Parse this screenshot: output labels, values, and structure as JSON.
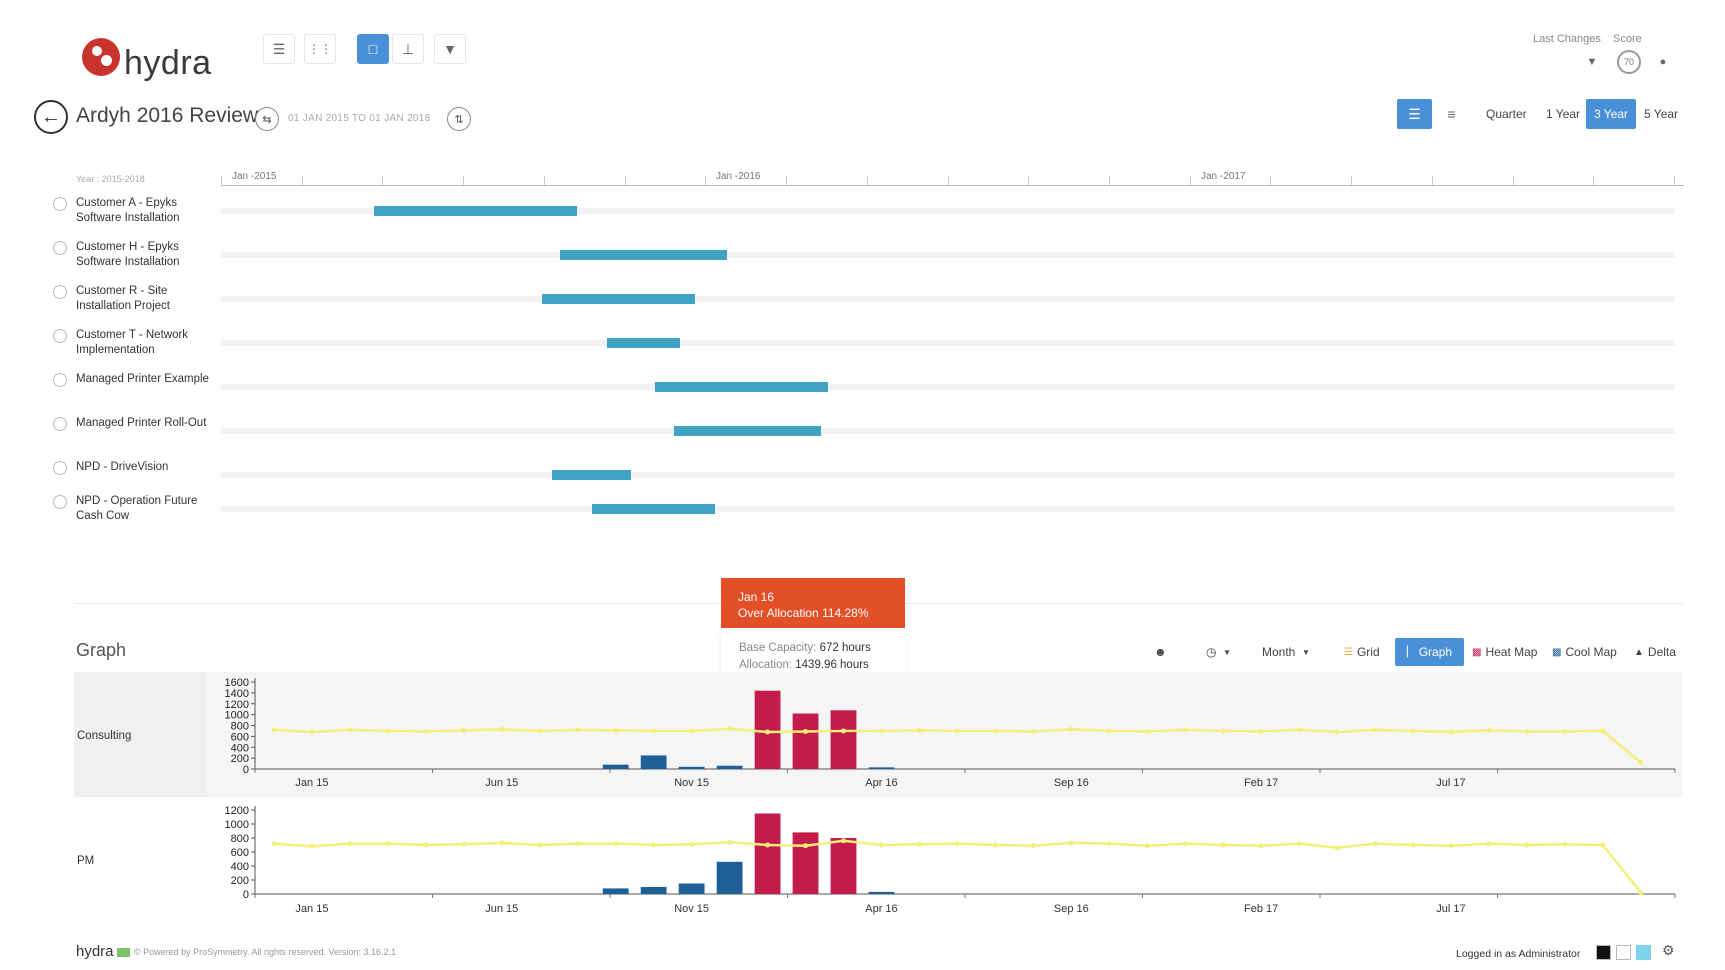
{
  "app": {
    "logo_text": "hydra"
  },
  "toolbar": {
    "buttons": [
      {
        "icon": "layers-icon"
      },
      {
        "icon": "grid-dots-icon"
      },
      {
        "icon": "document-icon",
        "active": true
      },
      {
        "icon": "org-chart-icon"
      },
      {
        "icon": "filter-icon"
      }
    ]
  },
  "top_right": {
    "last_changes_label": "Last Changes",
    "score_label": "Score",
    "score_value": "70"
  },
  "header": {
    "title": "Ardyh 2016 Review",
    "date_range": "01 JAN 2015 TO 01 JAN 2018",
    "periods": [
      "Quarter",
      "1 Year",
      "3 Year",
      "5 Year"
    ],
    "active_period": "3 Year"
  },
  "gantt": {
    "year_label": "Year : 2015-2018",
    "axis_labels": [
      "Jan -2015",
      "Jan -2016",
      "Jan -2017"
    ],
    "tasks": [
      {
        "label": "Customer A - Epyks Software Installation",
        "start": 0.105,
        "end": 0.245
      },
      {
        "label": "Customer H - Epyks Software Installation",
        "start": 0.233,
        "end": 0.348
      },
      {
        "label": "Customer R - Site Installation Project",
        "start": 0.221,
        "end": 0.326
      },
      {
        "label": "Customer T - Network Implementation",
        "start": 0.266,
        "end": 0.316
      },
      {
        "label": "Managed Printer Example",
        "start": 0.299,
        "end": 0.418
      },
      {
        "label": "Managed Printer Roll-Out",
        "start": 0.312,
        "end": 0.413
      },
      {
        "label": "NPD - DriveVision",
        "start": 0.228,
        "end": 0.282
      },
      {
        "label": "NPD - Operation Future Cash Cow",
        "start": 0.255,
        "end": 0.34
      }
    ]
  },
  "tooltip": {
    "title": "Jan 16",
    "subtitle": "Over Allocation 114.28%",
    "base_capacity_label": "Base Capacity:",
    "base_capacity_value": "672 hours",
    "allocation_label": "Allocation:",
    "allocation_value": "1439.96 hours"
  },
  "graph": {
    "title": "Graph",
    "month_label": "Month",
    "views": [
      "Grid",
      "Graph",
      "Heat Map",
      "Cool Map",
      "Delta"
    ],
    "active_view": "Graph",
    "colors": {
      "bar_under": "#1f5f99",
      "bar_over": "#c41c4a",
      "capacity_line": "#f4ef7a"
    }
  },
  "chart_data": [
    {
      "type": "bar",
      "title": "Consulting",
      "ylim": [
        0,
        1600
      ],
      "yticks": [
        0,
        200,
        400,
        600,
        800,
        1000,
        1200,
        1400,
        1600
      ],
      "xtick_labels": [
        "Jan 15",
        "Jun 15",
        "Nov 15",
        "Apr 16",
        "Sep 16",
        "Feb 17",
        "Jul 17"
      ],
      "xtick_index": [
        1,
        6,
        11,
        16,
        21,
        26,
        31
      ],
      "num_months": 37,
      "series": [
        {
          "name": "",
          "type": "bar",
          "values": [
            0,
            0,
            0,
            0,
            0,
            0,
            0,
            0,
            0,
            80,
            250,
            40,
            60,
            1440,
            1020,
            1080,
            30,
            0,
            0,
            0,
            0,
            0,
            0,
            0,
            0,
            0,
            0,
            0,
            0,
            0,
            0,
            0,
            0,
            0,
            0,
            0,
            0
          ]
        },
        {
          "name": "",
          "type": "line",
          "values": [
            720,
            680,
            720,
            700,
            690,
            710,
            730,
            700,
            720,
            710,
            700,
            700,
            740,
            680,
            690,
            700,
            700,
            710,
            700,
            700,
            690,
            730,
            700,
            690,
            720,
            700,
            690,
            720,
            680,
            720,
            700,
            680,
            710,
            690,
            690,
            700,
            120
          ]
        }
      ]
    },
    {
      "type": "bar",
      "title": "PM",
      "ylim": [
        0,
        1200
      ],
      "yticks": [
        0,
        200,
        400,
        600,
        800,
        1000,
        1200
      ],
      "xtick_labels": [
        "Jan 15",
        "Jun 15",
        "Nov 15",
        "Apr 16",
        "Sep 16",
        "Feb 17",
        "Jul 17"
      ],
      "xtick_index": [
        1,
        6,
        11,
        16,
        21,
        26,
        31
      ],
      "num_months": 37,
      "series": [
        {
          "name": "",
          "type": "bar",
          "values": [
            0,
            0,
            0,
            0,
            0,
            0,
            0,
            0,
            0,
            80,
            100,
            150,
            460,
            1150,
            880,
            800,
            30,
            0,
            0,
            0,
            0,
            0,
            0,
            0,
            0,
            0,
            0,
            0,
            0,
            0,
            0,
            0,
            0,
            0,
            0,
            0,
            0
          ]
        },
        {
          "name": "",
          "type": "line",
          "values": [
            720,
            680,
            720,
            720,
            700,
            710,
            730,
            700,
            720,
            720,
            700,
            710,
            740,
            700,
            690,
            760,
            700,
            710,
            720,
            700,
            690,
            730,
            720,
            690,
            720,
            700,
            690,
            720,
            660,
            720,
            700,
            690,
            720,
            700,
            710,
            700,
            20
          ]
        }
      ]
    }
  ],
  "footer": {
    "logo": "hydra",
    "copyright": "© Powered by ProSymmetry. All rights reserved. Version: 3.16.2.1",
    "user": "Logged in as Administrator"
  }
}
